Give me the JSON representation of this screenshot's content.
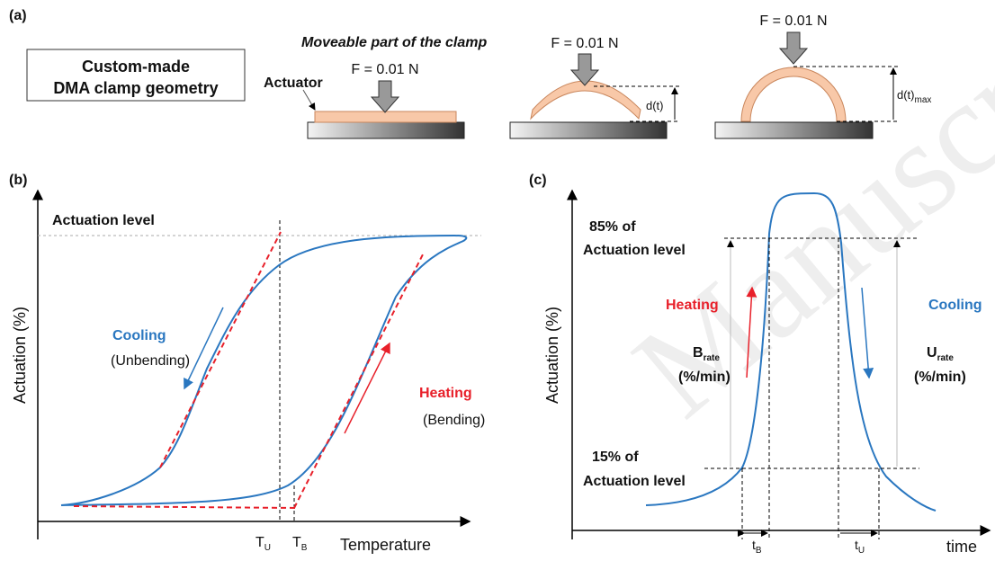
{
  "panel_a": {
    "label": "(a)",
    "box_title": [
      "Custom-made",
      "DMA clamp geometry"
    ],
    "moveable_part": "Moveable part of the clamp",
    "actuator": "Actuator",
    "forces": [
      "F = 0.01 N",
      "F = 0.01 N",
      "F = 0.01 N"
    ],
    "displacement": {
      "text": "d(t)"
    },
    "max_displacement": {
      "text": "d(t)",
      "sub": "max"
    }
  },
  "panel_b": {
    "label": "(b)",
    "y_axis": "Actuation (%)",
    "x_axis": "Temperature",
    "actuation_level": "Actuation level",
    "cooling": "Cooling",
    "unbending": "(Unbending)",
    "heating": "Heating",
    "bending": "(Bending)",
    "t_u": {
      "text": "T",
      "sub": "U"
    },
    "t_b": {
      "text": "T",
      "sub": "B"
    }
  },
  "panel_c": {
    "label": "(c)",
    "y_axis": "Actuation (%)",
    "x_axis": "time",
    "upper": [
      "85% of",
      "Actuation level"
    ],
    "lower": [
      "15% of",
      "Actuation level"
    ],
    "heating": "Heating",
    "cooling": "Cooling",
    "b_rate": {
      "text": "B",
      "sub": "rate",
      "unit": "(%/min)"
    },
    "u_rate": {
      "text": "U",
      "sub": "rate",
      "unit": "(%/min)"
    },
    "t_b": {
      "text": "t",
      "sub": "B"
    },
    "t_u": {
      "text": "t",
      "sub": "U"
    }
  },
  "watermark": "Manuscript"
}
